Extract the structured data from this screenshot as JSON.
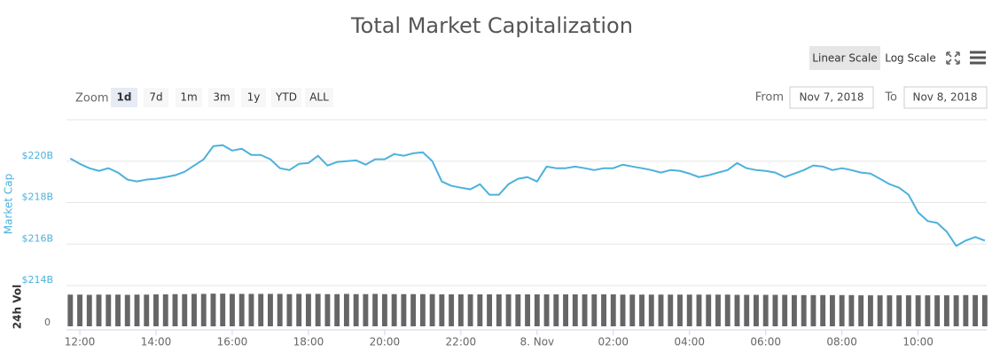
{
  "toolbar": {
    "scale_buttons": [
      "Linear Scale",
      "Log Scale"
    ],
    "log_scale": false,
    "range_selector": {
      "label": "Zoom",
      "buttons": [
        "1d",
        "7d",
        "1m",
        "3m",
        "1y",
        "YTD",
        "ALL"
      ],
      "selected": "1d"
    },
    "from_label": "From",
    "from": "Nov 7, 2018",
    "to_label": "To",
    "to": "Nov 8, 2018"
  },
  "chart_data": {
    "type": "line",
    "title": "Total Market Capitalization",
    "ylabel": "Market Cap",
    "y2label": "24h Vol",
    "x": [
      11.75,
      12,
      12.25,
      12.5,
      12.75,
      13,
      13.25,
      13.5,
      13.75,
      14,
      14.25,
      14.5,
      14.75,
      15,
      15.25,
      15.5,
      15.75,
      16,
      16.25,
      16.5,
      16.75,
      17,
      17.25,
      17.5,
      17.75,
      18,
      18.25,
      18.5,
      18.75,
      19,
      19.25,
      19.5,
      19.75,
      20,
      20.25,
      20.5,
      20.75,
      21,
      21.25,
      21.5,
      21.75,
      22,
      22.25,
      22.5,
      22.75,
      23,
      23.25,
      23.5,
      23.75,
      24,
      24.25,
      24.5,
      24.75,
      25,
      25.25,
      25.5,
      25.75,
      26,
      26.25,
      26.5,
      26.75,
      27,
      27.25,
      27.5,
      27.75,
      28,
      28.25,
      28.5,
      28.75,
      29,
      29.25,
      29.5,
      29.75,
      30,
      30.25,
      30.5,
      30.75,
      31,
      31.25,
      31.5,
      31.75,
      32,
      32.25,
      32.5,
      32.75,
      33,
      33.25,
      33.5,
      33.75,
      34,
      34.25,
      34.5,
      34.75,
      35,
      35.25,
      35.5,
      35.75
    ],
    "xlim": [
      11.65,
      35.8
    ],
    "xticks": [
      {
        "value": 12,
        "label": "12:00"
      },
      {
        "value": 14,
        "label": "14:00"
      },
      {
        "value": 16,
        "label": "16:00"
      },
      {
        "value": 18,
        "label": "18:00"
      },
      {
        "value": 20,
        "label": "20:00"
      },
      {
        "value": 22,
        "label": "22:00"
      },
      {
        "value": 24,
        "label": "8. Nov"
      },
      {
        "value": 26,
        "label": "02:00"
      },
      {
        "value": 28,
        "label": "04:00"
      },
      {
        "value": 30,
        "label": "06:00"
      },
      {
        "value": 32,
        "label": "08:00"
      },
      {
        "value": 34,
        "label": "10:00"
      }
    ],
    "ylim": [
      214,
      222
    ],
    "yticks": [
      {
        "value": 214,
        "label": "$214B"
      },
      {
        "value": 216,
        "label": "$216B"
      },
      {
        "value": 218,
        "label": "$218B"
      },
      {
        "value": 220,
        "label": "$220B"
      }
    ],
    "y2lim": [
      0,
      16
    ],
    "y2ticks": [
      0
    ],
    "grid": true,
    "series": [
      {
        "type": "line",
        "color": "#4cb1dc",
        "values": [
          220.13,
          219.87,
          219.66,
          219.53,
          219.66,
          219.45,
          219.11,
          219.02,
          219.11,
          219.15,
          219.23,
          219.32,
          219.49,
          219.79,
          220.09,
          220.72,
          220.77,
          220.51,
          220.6,
          220.3,
          220.3,
          220.09,
          219.66,
          219.57,
          219.87,
          219.91,
          220.26,
          219.79,
          219.96,
          220.0,
          220.04,
          219.83,
          220.09,
          220.09,
          220.34,
          220.26,
          220.38,
          220.43,
          220.0,
          219.02,
          218.81,
          218.72,
          218.64,
          218.89,
          218.38,
          218.38,
          218.89,
          219.15,
          219.23,
          219.02,
          219.74,
          219.66,
          219.66,
          219.74,
          219.66,
          219.57,
          219.66,
          219.66,
          219.83,
          219.74,
          219.66,
          219.57,
          219.45,
          219.57,
          219.53,
          219.4,
          219.23,
          219.32,
          219.45,
          219.57,
          219.91,
          219.66,
          219.57,
          219.53,
          219.45,
          219.23,
          219.4,
          219.57,
          219.79,
          219.74,
          219.57,
          219.66,
          219.57,
          219.45,
          219.4,
          219.15,
          218.89,
          218.72,
          218.38,
          217.53,
          217.11,
          217.02,
          216.6,
          215.91,
          216.17,
          216.34,
          216.17
        ]
      },
      {
        "type": "bar",
        "axis": "y2",
        "color": "#666666",
        "values": [
          13.3,
          13.3,
          13.2,
          13.3,
          13.3,
          13.3,
          13.2,
          13.3,
          13.3,
          13.4,
          13.4,
          13.5,
          13.5,
          13.6,
          13.6,
          13.7,
          13.7,
          13.6,
          13.6,
          13.6,
          13.6,
          13.6,
          13.6,
          13.5,
          13.6,
          13.6,
          13.6,
          13.5,
          13.5,
          13.6,
          13.5,
          13.5,
          13.6,
          13.5,
          13.5,
          13.5,
          13.5,
          13.5,
          13.5,
          13.4,
          13.4,
          13.4,
          13.4,
          13.4,
          13.4,
          13.4,
          13.4,
          13.4,
          13.4,
          13.4,
          13.4,
          13.4,
          13.4,
          13.4,
          13.4,
          13.4,
          13.4,
          13.4,
          13.3,
          13.3,
          13.3,
          13.3,
          13.3,
          13.3,
          13.3,
          13.3,
          13.3,
          13.3,
          13.3,
          13.3,
          13.2,
          13.2,
          13.2,
          13.2,
          13.2,
          13.2,
          13.1,
          13.1,
          13.1,
          13.1,
          13.1,
          13.1,
          13.1,
          13.0,
          13.0,
          13.0,
          13.0,
          13.0,
          13.0,
          13.0,
          13.0,
          13.0,
          13.0,
          13.0,
          13.1,
          13.1,
          13.1
        ]
      }
    ]
  }
}
